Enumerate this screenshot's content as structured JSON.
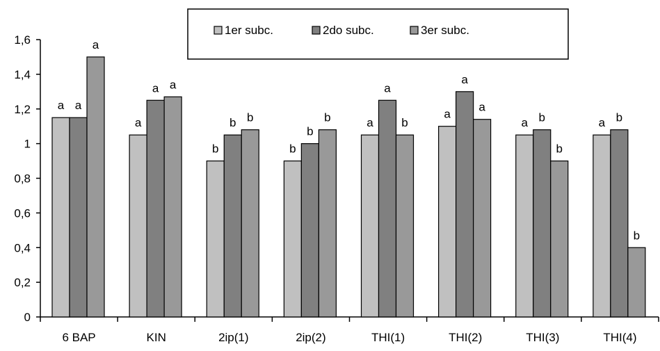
{
  "chart_data": {
    "type": "bar",
    "categories": [
      "6 BAP",
      "KIN",
      "2ip(1)",
      "2ip(2)",
      "THI(1)",
      "THI(2)",
      "THI(3)",
      "THI(4)"
    ],
    "series": [
      {
        "name": "1er subc.",
        "color": "#c0c0c0",
        "values": [
          1.15,
          1.05,
          0.9,
          0.9,
          1.05,
          1.1,
          1.05,
          1.05
        ],
        "labels": [
          "a",
          "a",
          "b",
          "b",
          "a",
          "a",
          "a",
          "a"
        ]
      },
      {
        "name": "2do subc.",
        "color": "#808080",
        "values": [
          1.15,
          1.25,
          1.05,
          1.0,
          1.25,
          1.3,
          1.08,
          1.08
        ],
        "labels": [
          "a",
          "a",
          "b",
          "b",
          "a",
          "a",
          "b",
          "b"
        ]
      },
      {
        "name": "3er subc.",
        "color": "#999999",
        "values": [
          1.5,
          1.27,
          1.08,
          1.08,
          1.05,
          1.14,
          0.9,
          0.4
        ],
        "labels": [
          "a",
          "a",
          "b",
          "b",
          "b",
          "a",
          "b",
          "b"
        ]
      }
    ],
    "yticks": [
      "0",
      "0,2",
      "0,4",
      "0,6",
      "0,8",
      "1",
      "1,2",
      "1,4",
      "1,6"
    ],
    "ylim": [
      0,
      1.6
    ],
    "title": "",
    "xlabel": "",
    "ylabel": "",
    "grid": false,
    "legend_position": "top-center, boxed"
  }
}
